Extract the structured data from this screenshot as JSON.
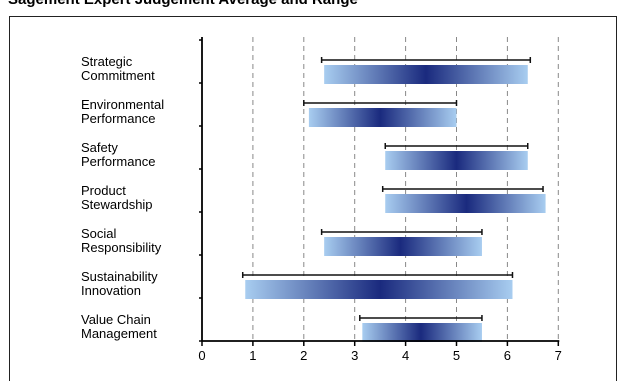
{
  "header": {
    "partial_title": "Sagement Expert Judgement Average and Range"
  },
  "colors": {
    "bar_edge": "#a8cdf0",
    "bar_core": "#1a2a7e",
    "range_line": "#111111",
    "grid": "#888888"
  },
  "chart_data": {
    "type": "bar",
    "orientation": "horizontal",
    "categories": [
      [
        "Strategic",
        "Commitment"
      ],
      [
        "Environmental",
        "Performance"
      ],
      [
        "Safety",
        "Performance"
      ],
      [
        "Product",
        "Stewardship"
      ],
      [
        "Social",
        "Responsibility"
      ],
      [
        "Sustainability",
        "Innovation"
      ],
      [
        "Value Chain",
        "Management"
      ]
    ],
    "bars": [
      {
        "start": 2.4,
        "end": 6.4,
        "center": 4.4
      },
      {
        "start": 2.1,
        "end": 5.0,
        "center": 3.5
      },
      {
        "start": 3.6,
        "end": 6.4,
        "center": 5.0
      },
      {
        "start": 3.6,
        "end": 6.75,
        "center": 5.2
      },
      {
        "start": 2.4,
        "end": 5.5,
        "center": 3.9
      },
      {
        "start": 0.85,
        "end": 6.1,
        "center": 3.5
      },
      {
        "start": 3.15,
        "end": 5.5,
        "center": 4.3
      }
    ],
    "ranges": [
      {
        "min": 2.35,
        "max": 6.45
      },
      {
        "min": 2.0,
        "max": 5.0
      },
      {
        "min": 3.6,
        "max": 6.4
      },
      {
        "min": 3.55,
        "max": 6.7
      },
      {
        "min": 2.35,
        "max": 5.5
      },
      {
        "min": 0.8,
        "max": 6.1
      },
      {
        "min": 3.1,
        "max": 5.5
      }
    ],
    "xticks": [
      "0",
      "1",
      "2",
      "3",
      "4",
      "5",
      "6",
      "7"
    ],
    "xlim": [
      0,
      7
    ],
    "grid": "vertical dashed at 1-7",
    "xlabel": "",
    "ylabel": ""
  }
}
